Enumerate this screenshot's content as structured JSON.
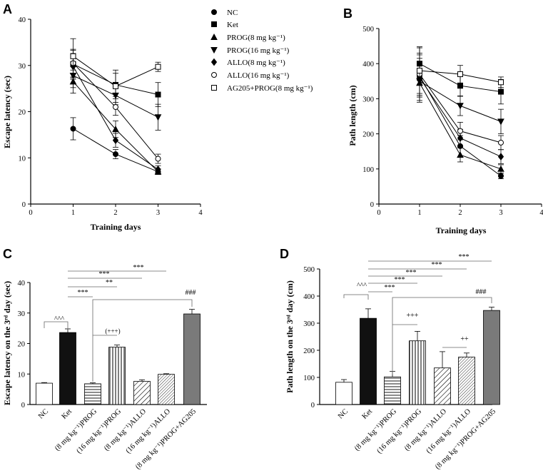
{
  "legend": [
    {
      "label": "NC",
      "marker": "circle-filled"
    },
    {
      "label": "Ket",
      "marker": "square-filled"
    },
    {
      "label": "PROG(8 mg kg⁻¹)",
      "marker": "triangle-up-filled"
    },
    {
      "label": "PROG(16 mg kg⁻¹)",
      "marker": "triangle-down-filled"
    },
    {
      "label": "ALLO(8 mg kg⁻¹)",
      "marker": "diamond-filled"
    },
    {
      "label": "ALLO(16 mg kg⁻¹)",
      "marker": "circle-open"
    },
    {
      "label": "AG205+PROG(8 mg kg⁻¹)",
      "marker": "square-open"
    }
  ],
  "chart_data": [
    {
      "id": "A",
      "panel_label": "A",
      "type": "line",
      "xlabel": "Training days",
      "ylabel": "Escape latency (sec)",
      "xlim": [
        0,
        4
      ],
      "ylim": [
        0,
        40
      ],
      "xticks": [
        "0",
        "1",
        "2",
        "3",
        "4"
      ],
      "yticks": [
        "0",
        "10",
        "20",
        "30",
        "40"
      ],
      "x": [
        1,
        2,
        3
      ],
      "series": [
        {
          "name": "NC",
          "values": [
            16.3,
            10.8,
            7.0
          ],
          "errors": [
            2.4,
            1.0,
            0.6
          ]
        },
        {
          "name": "Ket",
          "values": [
            30.3,
            25.8,
            23.7
          ],
          "errors": [
            3.0,
            2.5,
            2.6
          ]
        },
        {
          "name": "PROG(8 mg kg⁻¹)",
          "values": [
            26.5,
            16.2,
            7.0
          ],
          "errors": [
            2.5,
            1.8,
            0.6
          ]
        },
        {
          "name": "PROG(16 mg kg⁻¹)",
          "values": [
            27.8,
            23.5,
            18.8
          ],
          "errors": [
            2.6,
            2.0,
            2.8
          ]
        },
        {
          "name": "ALLO(8 mg kg⁻¹)",
          "values": [
            29.8,
            13.8,
            7.5
          ],
          "errors": [
            2.8,
            1.5,
            0.8
          ]
        },
        {
          "name": "ALLO(16 mg kg⁻¹)",
          "values": [
            30.5,
            21.0,
            9.8
          ],
          "errors": [
            3.0,
            1.8,
            1.0
          ]
        },
        {
          "name": "AG205+PROG(8 mg kg⁻¹)",
          "values": [
            32.0,
            25.5,
            29.7
          ],
          "errors": [
            3.8,
            3.5,
            1.0
          ]
        }
      ]
    },
    {
      "id": "B",
      "panel_label": "B",
      "type": "line",
      "xlabel": "Training days",
      "ylabel": "Path length (cm)",
      "xlim": [
        0,
        4
      ],
      "ylim": [
        0,
        500
      ],
      "xticks": [
        "0",
        "1",
        "2",
        "3",
        "4"
      ],
      "yticks": [
        "0",
        "100",
        "200",
        "300",
        "400",
        "500"
      ],
      "x": [
        1,
        2,
        3
      ],
      "series": [
        {
          "name": "NC",
          "values": [
            365,
            165,
            80
          ],
          "errors": [
            60,
            30,
            8
          ]
        },
        {
          "name": "Ket",
          "values": [
            400,
            337,
            320
          ],
          "errors": [
            48,
            30,
            35
          ]
        },
        {
          "name": "PROG(8 mg kg⁻¹)",
          "values": [
            345,
            140,
            100
          ],
          "errors": [
            55,
            20,
            12
          ]
        },
        {
          "name": "PROG(16 mg kg⁻¹)",
          "values": [
            350,
            280,
            235
          ],
          "errors": [
            55,
            28,
            35
          ]
        },
        {
          "name": "ALLO(8 mg kg⁻¹)",
          "values": [
            360,
            188,
            135
          ],
          "errors": [
            55,
            25,
            20
          ]
        },
        {
          "name": "ALLO(16 mg kg⁻¹)",
          "values": [
            370,
            208,
            175
          ],
          "errors": [
            60,
            25,
            20
          ]
        },
        {
          "name": "AG205+PROG(8 mg kg⁻¹)",
          "values": [
            380,
            370,
            347
          ],
          "errors": [
            65,
            25,
            15
          ]
        }
      ]
    },
    {
      "id": "C",
      "panel_label": "C",
      "type": "bar",
      "xlabel": "",
      "ylabel": "Escape latency on the 3ʳᵈ day (sec)",
      "ylim": [
        0,
        40
      ],
      "yticks": [
        "0",
        "10",
        "20",
        "30",
        "40"
      ],
      "categories": [
        "NC",
        "Ket",
        "(8 mg kg⁻¹)PROG",
        "(16 mg kg⁻¹)PROG",
        "(8 mg kg⁻¹)ALLO",
        "(16 mg kg⁻¹)ALLO",
        "(8 mg kg⁻¹)PROG+AG205"
      ],
      "values": [
        7.0,
        23.6,
        6.8,
        18.8,
        7.6,
        9.9,
        29.7
      ],
      "errors": [
        0.2,
        1.2,
        0.3,
        0.7,
        0.5,
        0.2,
        1.5
      ],
      "annotations": [
        "***",
        "***",
        "**",
        "***",
        "^^^",
        "(+++)",
        "###"
      ]
    },
    {
      "id": "D",
      "panel_label": "D",
      "type": "bar",
      "xlabel": "",
      "ylabel": "Path length on the 3ʳᵈ day (cm)",
      "ylim": [
        0,
        500
      ],
      "yticks": [
        "0",
        "100",
        "200",
        "300",
        "400",
        "500"
      ],
      "categories": [
        "NC",
        "Ket",
        "(8 mg kg⁻¹)PROG",
        "(16 mg kg⁻¹)PROG",
        "(8 mg kg⁻¹)ALLO",
        "(16 mg kg⁻¹)ALLO",
        "(8 mg kg⁻¹)PROG+AG205"
      ],
      "values": [
        82,
        318,
        102,
        235,
        135,
        175,
        347
      ],
      "errors": [
        10,
        35,
        20,
        35,
        60,
        15,
        12
      ],
      "annotations": [
        "***",
        "***",
        "***",
        "***",
        "***",
        "^^^",
        "+++",
        "++",
        "###"
      ]
    }
  ]
}
